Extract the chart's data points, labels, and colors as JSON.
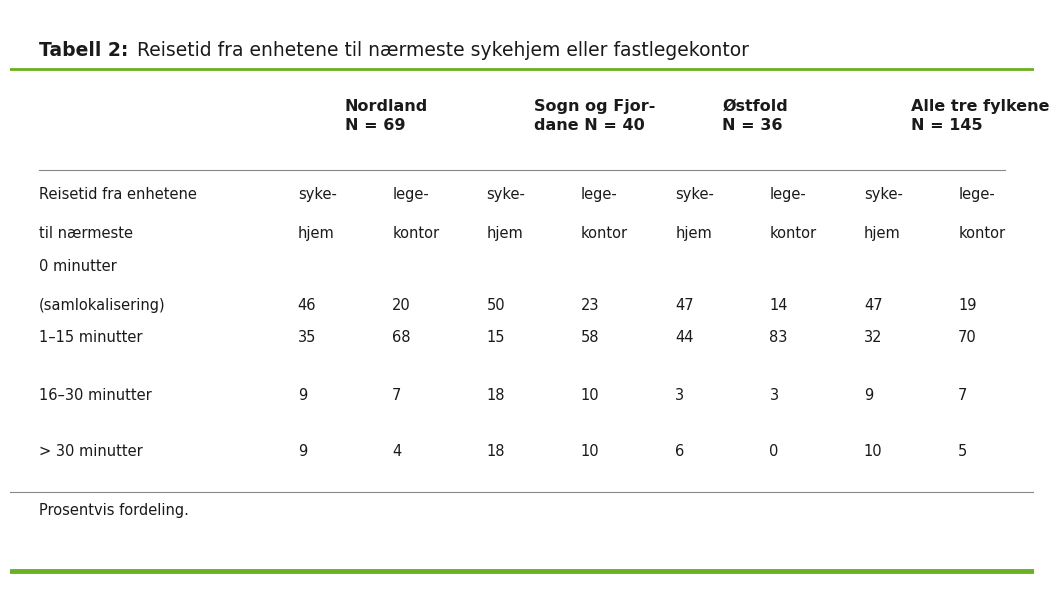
{
  "title_bold": "Tabell 2:",
  "title_regular": " Reisetid fra enhetene til nærmeste sykehjem eller fastlegekontor",
  "col_groups": [
    {
      "label": "Nordland\nN = 69"
    },
    {
      "label": "Sogn og Fjor-\ndane N = 40"
    },
    {
      "label": "Østfold\nN = 36"
    },
    {
      "label": "Alle tre fylkene\nN = 145"
    }
  ],
  "subheader_label_line1": "Reisetid fra enhetene",
  "subheader_label_line2": "til nærmeste",
  "subcols": [
    "syke-\nhjem",
    "lege-\nkontor",
    "syke-\nhjem",
    "lege-\nkontor",
    "syke-\nhjem",
    "lege-\nkontor",
    "syke-\nhjem",
    "lege-\nkontor"
  ],
  "rows": [
    {
      "label_line1": "0 minutter",
      "label_line2": "(samlokalisering)",
      "values": [
        "46",
        "20",
        "50",
        "23",
        "47",
        "14",
        "47",
        "19"
      ],
      "two_line": true
    },
    {
      "label_line1": "1–15 minutter",
      "label_line2": "",
      "values": [
        "35",
        "68",
        "15",
        "58",
        "44",
        "83",
        "32",
        "70"
      ],
      "two_line": false
    },
    {
      "label_line1": "16–30 minutter",
      "label_line2": "",
      "values": [
        "9",
        "7",
        "18",
        "10",
        "3",
        "3",
        "9",
        "7"
      ],
      "two_line": false
    },
    {
      "label_line1": "> 30 minutter",
      "label_line2": "",
      "values": [
        "9",
        "4",
        "18",
        "10",
        "6",
        "0",
        "10",
        "5"
      ],
      "two_line": false
    }
  ],
  "footnote": "Prosentvis fordeling.",
  "background_color": "#ffffff",
  "green_line_color": "#6ab023",
  "text_color": "#1a1a1a",
  "separator_color": "#888888"
}
